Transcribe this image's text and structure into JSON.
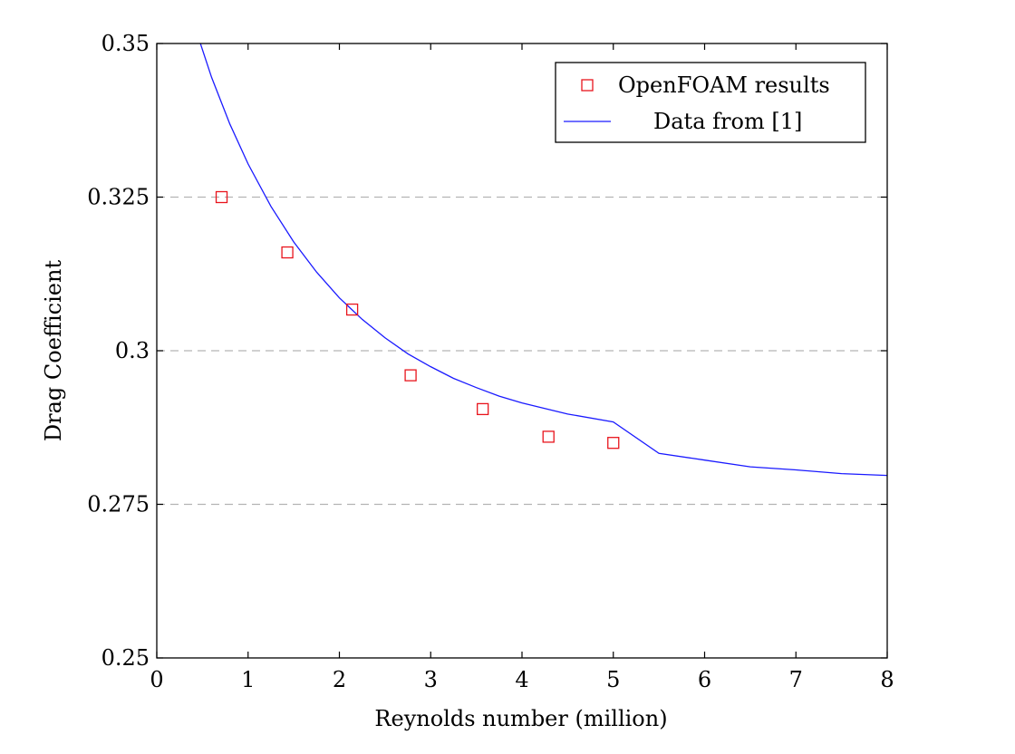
{
  "chart_data": {
    "type": "line",
    "title": "",
    "xlabel": "Reynolds number (million)",
    "ylabel": "Drag Coefficient",
    "xlim": [
      0,
      8
    ],
    "ylim": [
      0.25,
      0.35
    ],
    "x_ticks": [
      0,
      1,
      2,
      3,
      4,
      5,
      6,
      7,
      8
    ],
    "x_tick_labels": [
      "0",
      "1",
      "2",
      "3",
      "4",
      "5",
      "6",
      "7",
      "8"
    ],
    "y_ticks": [
      0.25,
      0.275,
      0.3,
      0.325,
      0.35
    ],
    "y_tick_labels": [
      "0.25",
      "0.275",
      "0.3",
      "0.325",
      "0.35"
    ],
    "grid": "horizontal dashed",
    "legend_position": "top-right",
    "series": [
      {
        "name": "OpenFOAM results",
        "kind": "scatter",
        "marker": "square",
        "color": "#e8141c",
        "x": [
          0.71,
          1.43,
          2.14,
          2.78,
          3.57,
          4.29,
          5.0
        ],
        "y": [
          0.325,
          0.316,
          0.3067,
          0.296,
          0.2905,
          0.286,
          0.285
        ]
      },
      {
        "name": "Data from [1]",
        "kind": "line",
        "color": "#1a1aff",
        "x": [
          0.4,
          0.6,
          0.8,
          1.0,
          1.25,
          1.5,
          1.75,
          2.0,
          2.25,
          2.5,
          2.75,
          3.0,
          3.25,
          3.5,
          3.75,
          4.0,
          4.5,
          5.0,
          5.5,
          6.0,
          6.5,
          7.0,
          7.5,
          8.0
        ],
        "y": [
          0.3535,
          0.3445,
          0.3369,
          0.3304,
          0.3235,
          0.3177,
          0.3128,
          0.3086,
          0.3051,
          0.3021,
          0.2995,
          0.2974,
          0.2955,
          0.294,
          0.2926,
          0.2915,
          0.2897,
          0.2884,
          0.2833,
          0.2822,
          0.2811,
          0.2806,
          0.28,
          0.2797
        ]
      }
    ]
  }
}
